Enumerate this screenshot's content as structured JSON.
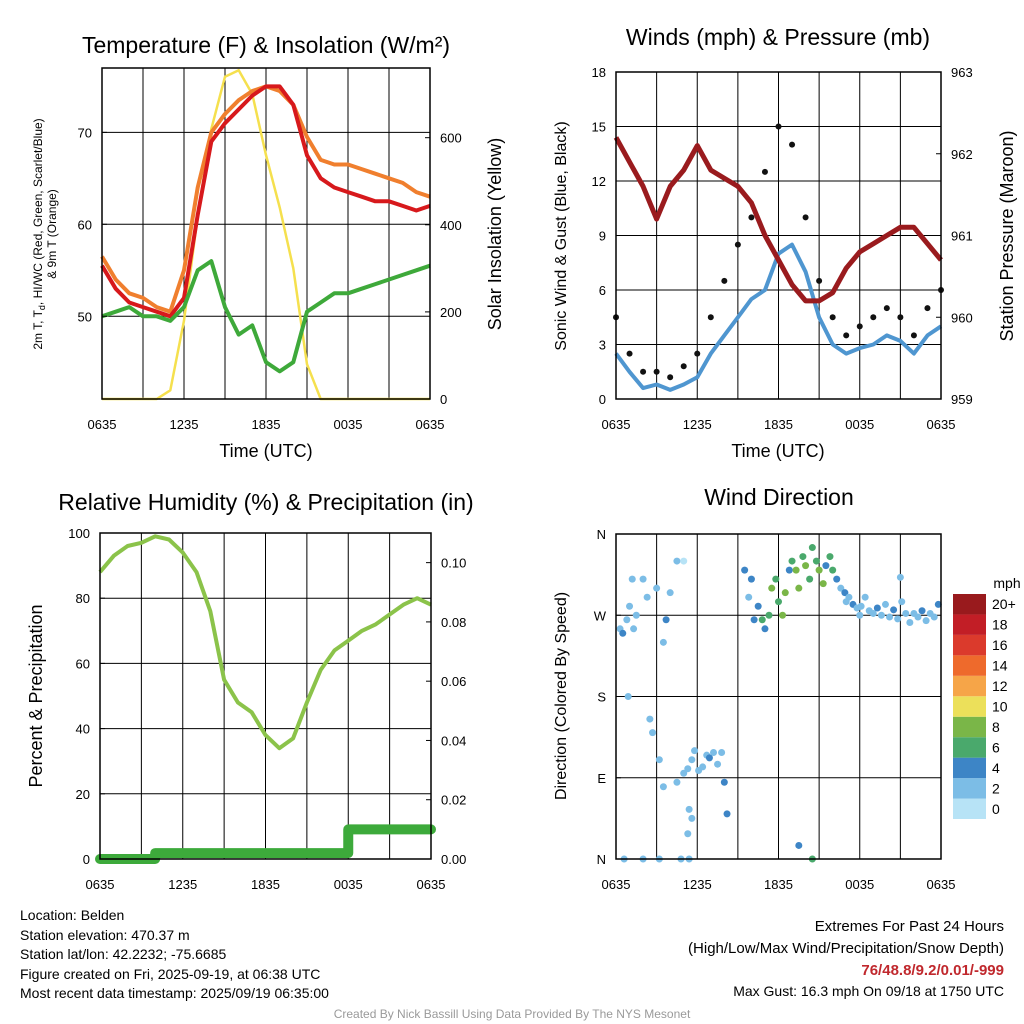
{
  "panels": {
    "temperature": {
      "title": "Temperature (F) & Insolation (W/m²)",
      "xlabel": "Time (UTC)",
      "ylabel_left": "2m T, T_d, HI/WC (Red, Green, Scarlet/Blue) & 9m T (Orange)",
      "ylabel_left_line1": "2m T, T",
      "ylabel_left_sub": "d",
      "ylabel_left_line1_rest": ", HI/WC (Red, Green, Scarlet/Blue)",
      "ylabel_left_line2": "& 9m T (Orange)",
      "ylabel_right": "Solar Insolation (Yellow)"
    },
    "winds": {
      "title": "Winds (mph) & Pressure (mb)",
      "xlabel": "Time (UTC)",
      "ylabel_left": "Sonic Wind & Gust (Blue, Black)",
      "ylabel_right": "Station Pressure (Maroon)"
    },
    "humidity": {
      "title": "Relative Humidity (%) & Precipitation (in)",
      "ylabel_left": "Percent & Precipitation"
    },
    "direction": {
      "title": "Wind Direction",
      "ylabel_left": "Direction (Colored By Speed)",
      "colorbar_label": "mph"
    }
  },
  "chart_data": [
    {
      "id": "temperature",
      "type": "line",
      "x_ticks": [
        "0635",
        "1235",
        "1835",
        "0035",
        "0635"
      ],
      "x": [
        0,
        1,
        2,
        3,
        4,
        5,
        6,
        7,
        8,
        9,
        10,
        11,
        12,
        13,
        14,
        15,
        16,
        17,
        18,
        19,
        20,
        21,
        22,
        23,
        24
      ],
      "ylim_left": [
        41,
        77
      ],
      "yticks_left": [
        50,
        60,
        70
      ],
      "ylim_right": [
        0,
        760
      ],
      "yticks_right": [
        0,
        200,
        400,
        600
      ],
      "series": [
        {
          "axis": "left",
          "color": "#f07f2e",
          "values": [
            56.5,
            54,
            52.5,
            52,
            51,
            50.5,
            55,
            64,
            70,
            72,
            73.5,
            74.5,
            75,
            74.5,
            73,
            69.5,
            67,
            66.5,
            66.5,
            66,
            65.5,
            65,
            64.5,
            63.5,
            63
          ]
        },
        {
          "axis": "left",
          "color": "#d7191c",
          "values": [
            55.5,
            53,
            51.5,
            51,
            50.5,
            50,
            52,
            61,
            69,
            71,
            72.5,
            74,
            75,
            75,
            73,
            67.5,
            65,
            64,
            63.5,
            63,
            62.5,
            62.5,
            62,
            61.5,
            62
          ]
        },
        {
          "axis": "left",
          "color": "#3ea93a",
          "values": [
            50,
            50.5,
            51,
            50,
            50,
            49.5,
            51,
            55,
            56,
            51,
            48,
            49,
            45,
            44,
            45,
            50.5,
            51.5,
            52.5,
            52.5,
            53,
            53.5,
            54,
            54.5,
            55,
            55.5
          ]
        },
        {
          "axis": "right",
          "color": "#f5e04e",
          "values": [
            0,
            0,
            0,
            0,
            0,
            20,
            180,
            420,
            620,
            740,
            755,
            700,
            560,
            440,
            300,
            80,
            0,
            0,
            0,
            0,
            0,
            0,
            0,
            0,
            0
          ]
        }
      ]
    },
    {
      "id": "winds",
      "type": "line",
      "x_ticks": [
        "0635",
        "1235",
        "1835",
        "0035",
        "0635"
      ],
      "x": [
        0,
        1,
        2,
        3,
        4,
        5,
        6,
        7,
        8,
        9,
        10,
        11,
        12,
        13,
        14,
        15,
        16,
        17,
        18,
        19,
        20,
        21,
        22,
        23,
        24
      ],
      "ylim_left": [
        0,
        18
      ],
      "yticks_left": [
        0,
        3,
        6,
        9,
        12,
        15,
        18
      ],
      "ylim_right": [
        959,
        963
      ],
      "yticks_right": [
        959,
        960,
        961,
        962,
        963
      ],
      "series": [
        {
          "axis": "left",
          "color": "#4f96d0",
          "values": [
            2.5,
            1.5,
            0.6,
            0.8,
            0.5,
            0.8,
            1.2,
            2.5,
            3.5,
            4.5,
            5.5,
            6,
            8,
            8.5,
            7,
            4.5,
            3,
            2.5,
            2.8,
            3,
            3.5,
            3.2,
            2.5,
            3.5,
            4
          ]
        },
        {
          "axis": "left",
          "color": "#111111",
          "type": "scatter",
          "values": [
            4.5,
            2.5,
            1.5,
            1.5,
            1.2,
            1.8,
            2.5,
            4.5,
            6.5,
            8.5,
            10,
            12.5,
            15,
            14,
            10,
            6.5,
            4.5,
            3.5,
            4,
            4.5,
            5,
            4.5,
            3.5,
            5,
            6
          ]
        },
        {
          "axis": "right",
          "color": "#9a1b1e",
          "values": [
            962.2,
            961.9,
            961.6,
            961.2,
            961.6,
            961.8,
            962.1,
            961.8,
            961.7,
            961.6,
            961.4,
            961.0,
            960.7,
            960.4,
            960.2,
            960.2,
            960.3,
            960.6,
            960.8,
            960.9,
            961.0,
            961.1,
            961.1,
            960.9,
            960.7
          ]
        }
      ]
    },
    {
      "id": "humidity",
      "type": "line",
      "x_ticks": [
        "0635",
        "1235",
        "1835",
        "0035",
        "0635"
      ],
      "x": [
        0,
        1,
        2,
        3,
        4,
        5,
        6,
        7,
        8,
        9,
        10,
        11,
        12,
        13,
        14,
        15,
        16,
        17,
        18,
        19,
        20,
        21,
        22,
        23,
        24
      ],
      "ylim_left": [
        0,
        100
      ],
      "yticks_left": [
        0,
        20,
        40,
        60,
        80,
        100
      ],
      "ylim_right": [
        0,
        0.11
      ],
      "yticks_right": [
        "0.00",
        "0.02",
        "0.04",
        "0.06",
        "0.08",
        "0.10"
      ],
      "series": [
        {
          "axis": "left",
          "color": "#8bc34a",
          "values": [
            88,
            93,
            96,
            97,
            99,
            98,
            94,
            88,
            76,
            55,
            48,
            45,
            38,
            34,
            37,
            48,
            58,
            64,
            67,
            70,
            72,
            75,
            78,
            80,
            78
          ]
        },
        {
          "axis": "right",
          "color": "#3daa3b",
          "type": "step",
          "values": [
            0,
            0,
            0,
            0,
            0.002,
            0.002,
            0.002,
            0.002,
            0.002,
            0.002,
            0.002,
            0.002,
            0.002,
            0.002,
            0.002,
            0.002,
            0.002,
            0.002,
            0.01,
            0.01,
            0.01,
            0.01,
            0.01,
            0.01,
            0.01
          ]
        }
      ]
    },
    {
      "id": "direction",
      "type": "scatter",
      "x_ticks": [
        "0635",
        "1235",
        "1835",
        "0035",
        "0635"
      ],
      "y_ticks": [
        "N",
        "E",
        "S",
        "W",
        "N"
      ],
      "ylim": [
        0,
        360
      ],
      "colorbar": {
        "labels": [
          "0",
          "2",
          "4",
          "6",
          "8",
          "10",
          "12",
          "14",
          "16",
          "18",
          "20+"
        ],
        "colors": [
          "#b7e3f6",
          "#7cbde6",
          "#3d85c6",
          "#4aa96c",
          "#7ab648",
          "#ece05a",
          "#f6a548",
          "#ee6a2c",
          "#db3a2c",
          "#c21e26",
          "#991a1d"
        ]
      },
      "points": [
        {
          "t": 0.3,
          "dir": 255,
          "spd": 2
        },
        {
          "t": 0.5,
          "dir": 250,
          "spd": 3
        },
        {
          "t": 0.8,
          "dir": 265,
          "spd": 1
        },
        {
          "t": 1.0,
          "dir": 280,
          "spd": 2
        },
        {
          "t": 1.2,
          "dir": 310,
          "spd": 1
        },
        {
          "t": 1.3,
          "dir": 255,
          "spd": 2
        },
        {
          "t": 1.5,
          "dir": 270,
          "spd": 2
        },
        {
          "t": 0.9,
          "dir": 180,
          "spd": 1
        },
        {
          "t": 2.0,
          "dir": 310,
          "spd": 1
        },
        {
          "t": 2.3,
          "dir": 290,
          "spd": 2
        },
        {
          "t": 3.0,
          "dir": 300,
          "spd": 1
        },
        {
          "t": 3.5,
          "dir": 240,
          "spd": 2
        },
        {
          "t": 3.7,
          "dir": 265,
          "spd": 3
        },
        {
          "t": 4.0,
          "dir": 295,
          "spd": 1
        },
        {
          "t": 4.5,
          "dir": 330,
          "spd": 1
        },
        {
          "t": 5.0,
          "dir": 330,
          "spd": 0
        },
        {
          "t": 2.5,
          "dir": 155,
          "spd": 1
        },
        {
          "t": 2.7,
          "dir": 140,
          "spd": 1
        },
        {
          "t": 3.2,
          "dir": 110,
          "spd": 1
        },
        {
          "t": 3.5,
          "dir": 80,
          "spd": 1
        },
        {
          "t": 4.5,
          "dir": 85,
          "spd": 1
        },
        {
          "t": 5.0,
          "dir": 95,
          "spd": 2
        },
        {
          "t": 5.3,
          "dir": 100,
          "spd": 1
        },
        {
          "t": 5.6,
          "dir": 110,
          "spd": 2
        },
        {
          "t": 5.8,
          "dir": 120,
          "spd": 1
        },
        {
          "t": 6.1,
          "dir": 98,
          "spd": 2
        },
        {
          "t": 6.4,
          "dir": 102,
          "spd": 2
        },
        {
          "t": 6.7,
          "dir": 115,
          "spd": 2
        },
        {
          "t": 6.9,
          "dir": 112,
          "spd": 3
        },
        {
          "t": 7.2,
          "dir": 118,
          "spd": 2
        },
        {
          "t": 7.5,
          "dir": 105,
          "spd": 1
        },
        {
          "t": 7.8,
          "dir": 118,
          "spd": 2
        },
        {
          "t": 8.0,
          "dir": 85,
          "spd": 3
        },
        {
          "t": 8.2,
          "dir": 50,
          "spd": 3
        },
        {
          "t": 5.4,
          "dir": 55,
          "spd": 1
        },
        {
          "t": 5.6,
          "dir": 45,
          "spd": 1
        },
        {
          "t": 5.3,
          "dir": 28,
          "spd": 1
        },
        {
          "t": 0.6,
          "dir": 0,
          "spd": 1
        },
        {
          "t": 2.0,
          "dir": 0,
          "spd": 1
        },
        {
          "t": 3.2,
          "dir": 0,
          "spd": 1
        },
        {
          "t": 4.8,
          "dir": 0,
          "spd": 1
        },
        {
          "t": 5.4,
          "dir": 0,
          "spd": 1
        },
        {
          "t": 13.5,
          "dir": 15,
          "spd": 3
        },
        {
          "t": 14.5,
          "dir": 0,
          "spd": 6
        },
        {
          "t": 9.5,
          "dir": 320,
          "spd": 3
        },
        {
          "t": 10.0,
          "dir": 310,
          "spd": 4
        },
        {
          "t": 10.5,
          "dir": 280,
          "spd": 4
        },
        {
          "t": 10.8,
          "dir": 265,
          "spd": 5
        },
        {
          "t": 11.0,
          "dir": 255,
          "spd": 4
        },
        {
          "t": 11.3,
          "dir": 270,
          "spd": 6
        },
        {
          "t": 11.5,
          "dir": 300,
          "spd": 7
        },
        {
          "t": 11.8,
          "dir": 310,
          "spd": 6
        },
        {
          "t": 12.0,
          "dir": 285,
          "spd": 6
        },
        {
          "t": 12.3,
          "dir": 270,
          "spd": 8
        },
        {
          "t": 12.5,
          "dir": 295,
          "spd": 7
        },
        {
          "t": 12.8,
          "dir": 320,
          "spd": 4
        },
        {
          "t": 13.0,
          "dir": 330,
          "spd": 6
        },
        {
          "t": 13.3,
          "dir": 320,
          "spd": 8
        },
        {
          "t": 13.5,
          "dir": 300,
          "spd": 7
        },
        {
          "t": 13.8,
          "dir": 335,
          "spd": 5
        },
        {
          "t": 14.0,
          "dir": 325,
          "spd": 7
        },
        {
          "t": 14.3,
          "dir": 310,
          "spd": 6
        },
        {
          "t": 14.5,
          "dir": 345,
          "spd": 6
        },
        {
          "t": 14.8,
          "dir": 330,
          "spd": 5
        },
        {
          "t": 15.0,
          "dir": 320,
          "spd": 7
        },
        {
          "t": 15.3,
          "dir": 305,
          "spd": 8
        },
        {
          "t": 15.5,
          "dir": 325,
          "spd": 4
        },
        {
          "t": 15.8,
          "dir": 335,
          "spd": 6
        },
        {
          "t": 16.0,
          "dir": 320,
          "spd": 5
        },
        {
          "t": 16.3,
          "dir": 310,
          "spd": 3
        },
        {
          "t": 16.6,
          "dir": 300,
          "spd": 2
        },
        {
          "t": 16.9,
          "dir": 295,
          "spd": 3
        },
        {
          "t": 17.2,
          "dir": 290,
          "spd": 2
        },
        {
          "t": 17.5,
          "dir": 282,
          "spd": 3
        },
        {
          "t": 17.8,
          "dir": 278,
          "spd": 2
        },
        {
          "t": 18.1,
          "dir": 280,
          "spd": 2
        },
        {
          "t": 18.4,
          "dir": 290,
          "spd": 1
        },
        {
          "t": 18.7,
          "dir": 275,
          "spd": 2
        },
        {
          "t": 19.0,
          "dir": 272,
          "spd": 2
        },
        {
          "t": 19.3,
          "dir": 278,
          "spd": 3
        },
        {
          "t": 19.6,
          "dir": 270,
          "spd": 2
        },
        {
          "t": 19.9,
          "dir": 282,
          "spd": 2
        },
        {
          "t": 20.2,
          "dir": 268,
          "spd": 2
        },
        {
          "t": 20.5,
          "dir": 276,
          "spd": 3
        },
        {
          "t": 20.8,
          "dir": 266,
          "spd": 2
        },
        {
          "t": 21.1,
          "dir": 285,
          "spd": 1
        },
        {
          "t": 21.4,
          "dir": 272,
          "spd": 2
        },
        {
          "t": 21.7,
          "dir": 262,
          "spd": 2
        },
        {
          "t": 22.0,
          "dir": 272,
          "spd": 1
        },
        {
          "t": 22.3,
          "dir": 268,
          "spd": 2
        },
        {
          "t": 22.6,
          "dir": 275,
          "spd": 3
        },
        {
          "t": 22.9,
          "dir": 264,
          "spd": 2
        },
        {
          "t": 23.2,
          "dir": 272,
          "spd": 2
        },
        {
          "t": 23.5,
          "dir": 268,
          "spd": 2
        },
        {
          "t": 23.8,
          "dir": 282,
          "spd": 3
        },
        {
          "t": 21.0,
          "dir": 312,
          "spd": 1
        },
        {
          "t": 18.0,
          "dir": 270,
          "spd": 1
        },
        {
          "t": 17.0,
          "dir": 285,
          "spd": 2
        },
        {
          "t": 10.2,
          "dir": 265,
          "spd": 3
        },
        {
          "t": 9.8,
          "dir": 290,
          "spd": 2
        }
      ]
    }
  ],
  "info_left": {
    "location": "Location: Belden",
    "elevation": "Station elevation: 470.37 m",
    "latlon": "Station lat/lon: 42.2232; -75.6685",
    "created": "Figure created on Fri, 2025-09-19, at 06:38 UTC",
    "recent": "Most recent data timestamp: 2025/09/19 06:35:00"
  },
  "info_right": {
    "extremes_title": "Extremes For Past 24 Hours",
    "extremes_subtitle": "(High/Low/Max Wind/Precipitation/Snow Depth)",
    "extremes_values": "76/48.8/9.2/0.01/-999",
    "max_gust": "Max Gust: 16.3 mph On 09/18 at 1750 UTC"
  },
  "credit": "Created By Nick Bassill Using Data Provided By The NYS Mesonet"
}
